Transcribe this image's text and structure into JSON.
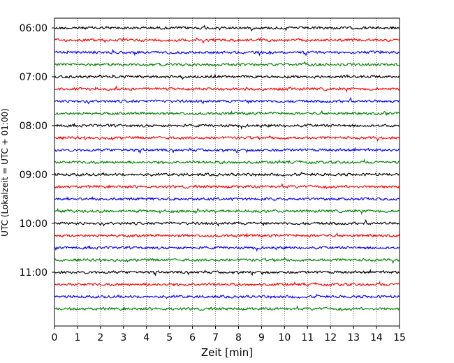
{
  "chart_data": {
    "type": "line",
    "title": "",
    "xlabel": "Zeit  [min]",
    "ylabel": "UTC (Lokalzeit = UTC + 01:00)",
    "xlim": [
      0,
      15
    ],
    "x_ticks": [
      "0",
      "1",
      "2",
      "3",
      "4",
      "5",
      "6",
      "7",
      "8",
      "9",
      "10",
      "11",
      "12",
      "13",
      "14",
      "15"
    ],
    "y_ticks": [
      "06:00",
      "07:00",
      "08:00",
      "09:00",
      "10:00",
      "11:00"
    ],
    "y_range": [
      "05:48",
      "12:06"
    ],
    "grid": "vertical dotted lines at each minute",
    "trace_interval_minutes": 15,
    "traces": [
      {
        "start": "06:00",
        "color": "#000000"
      },
      {
        "start": "06:15",
        "color": "#ff0000"
      },
      {
        "start": "06:30",
        "color": "#0000ff"
      },
      {
        "start": "06:45",
        "color": "#008000"
      },
      {
        "start": "07:00",
        "color": "#000000"
      },
      {
        "start": "07:15",
        "color": "#ff0000"
      },
      {
        "start": "07:30",
        "color": "#0000ff"
      },
      {
        "start": "07:45",
        "color": "#008000"
      },
      {
        "start": "08:00",
        "color": "#000000"
      },
      {
        "start": "08:15",
        "color": "#ff0000"
      },
      {
        "start": "08:30",
        "color": "#0000ff"
      },
      {
        "start": "08:45",
        "color": "#008000"
      },
      {
        "start": "09:00",
        "color": "#000000"
      },
      {
        "start": "09:15",
        "color": "#ff0000"
      },
      {
        "start": "09:30",
        "color": "#0000ff"
      },
      {
        "start": "09:45",
        "color": "#008000"
      },
      {
        "start": "10:00",
        "color": "#000000"
      },
      {
        "start": "10:15",
        "color": "#ff0000"
      },
      {
        "start": "10:30",
        "color": "#0000ff"
      },
      {
        "start": "10:45",
        "color": "#008000"
      },
      {
        "start": "11:00",
        "color": "#000000"
      },
      {
        "start": "11:15",
        "color": "#ff0000"
      },
      {
        "start": "11:30",
        "color": "#0000ff"
      },
      {
        "start": "11:45",
        "color": "#008000"
      }
    ]
  }
}
